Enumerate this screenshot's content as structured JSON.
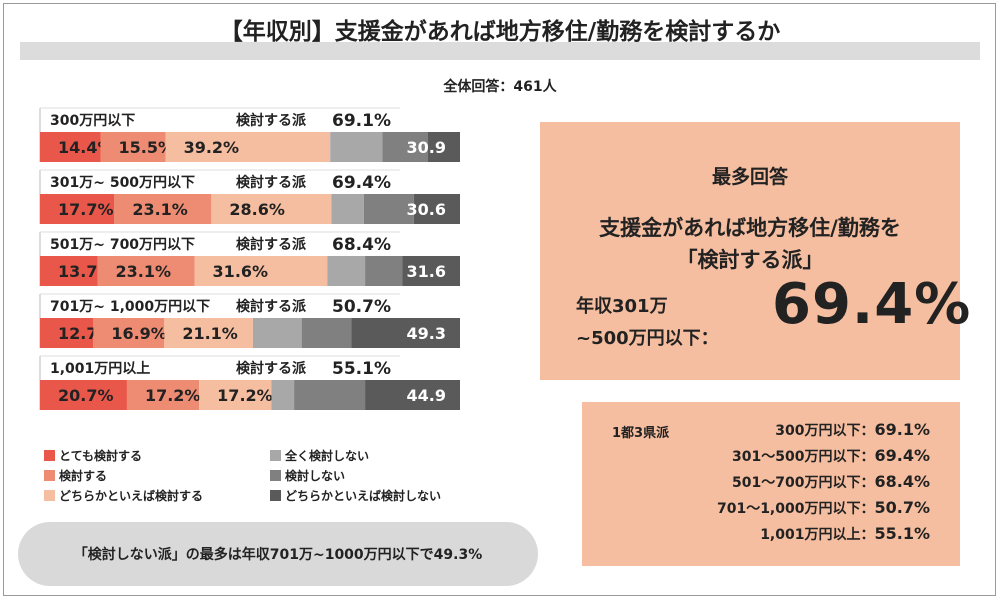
{
  "title": "【年収別】支援金があれば地方移住/勤務を検討するか",
  "total_responses": "全体回答：461人",
  "colors": {
    "very_likely": "#e8574a",
    "likely": "#ee8c73",
    "if_anything_likely": "#f5bea0",
    "not_at_all": "#a8a8a8",
    "unlikely": "#808080",
    "if_anything_unlikely": "#5a5a5a"
  },
  "chart_data": {
    "type": "bar",
    "orientation": "horizontal-stacked-100",
    "categories": [
      "300万円以下",
      "301万~ 500万円以下",
      "501万~ 700万円以下",
      "701万~ 1,000万円以下",
      "1,001万円以上"
    ],
    "consider_label": "検討する派",
    "consider_values": [
      "69.1%",
      "69.4%",
      "68.4%",
      "50.7%",
      "55.1%"
    ],
    "series": [
      {
        "name": "とても検討する",
        "color": "#e8574a",
        "values": [
          14.4,
          17.7,
          13.7,
          12.7,
          20.7
        ],
        "shown": [
          "14.4%",
          "17.7%",
          "13.7%",
          "12.7%",
          "20.7%"
        ]
      },
      {
        "name": "検討する",
        "color": "#ee8c73",
        "values": [
          15.5,
          23.1,
          23.1,
          16.9,
          17.2
        ],
        "shown": [
          "15.5%",
          "23.1%",
          "23.1%",
          "16.9%",
          "17.2%"
        ]
      },
      {
        "name": "どちらかといえば検討する",
        "color": "#f5bea0",
        "values": [
          39.2,
          28.6,
          31.6,
          21.1,
          17.2
        ],
        "shown": [
          "39.2%",
          "28.6%",
          "31.6%",
          "21.1%",
          "17.2%"
        ]
      },
      {
        "name": "全く検討しない",
        "color": "#a8a8a8",
        "values": [
          12.4,
          7.7,
          9.0,
          11.6,
          5.4
        ],
        "shown": [
          "",
          "",
          "",
          "",
          ""
        ]
      },
      {
        "name": "検討しない",
        "color": "#808080",
        "values": [
          10.8,
          11.9,
          8.9,
          11.8,
          16.9
        ],
        "shown": [
          "",
          "",
          "",
          "",
          ""
        ]
      },
      {
        "name": "どちらかといえば検討しない",
        "color": "#5a5a5a",
        "values": [
          7.7,
          11.0,
          13.7,
          25.9,
          22.6
        ],
        "shown": [
          "30.9",
          "30.6",
          "31.6",
          "49.3",
          "44.9"
        ]
      }
    ]
  },
  "legend": [
    {
      "label": "とても検討する",
      "color": "#e8574a"
    },
    {
      "label": "検討する",
      "color": "#ee8c73"
    },
    {
      "label": "どちらかといえば検討する",
      "color": "#f5bea0"
    },
    {
      "label": "全く検討しない",
      "color": "#a8a8a8"
    },
    {
      "label": "検討しない",
      "color": "#808080"
    },
    {
      "label": "どちらかといえば検討しない",
      "color": "#5a5a5a"
    }
  ],
  "note": "「検討しない派」の最多は年収701万~1000万円以下で49.3%",
  "highlight": {
    "heading": "最多回答",
    "line1": "支援金があれば地方移住/勤務を",
    "line2": "「検討する派」",
    "category_line1": "年収301万",
    "category_line2": "~500万円以下：",
    "value": "69.4%"
  },
  "summary": {
    "heading": "1都3県派",
    "rows": [
      {
        "label": "300万円以下：",
        "value": "69.1%"
      },
      {
        "label": "301～500万円以下：",
        "value": "69.4%"
      },
      {
        "label": "501～700万円以下：",
        "value": "68.4%"
      },
      {
        "label": "701～1,000万円以下：",
        "value": "50.7%"
      },
      {
        "label": "1,001万円以上：",
        "value": "55.1%"
      }
    ]
  }
}
